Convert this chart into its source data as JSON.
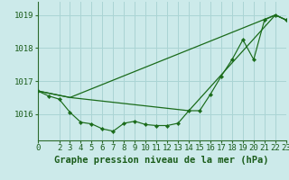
{
  "title": "Graphe pression niveau de la mer (hPa)",
  "background_color": "#cceaea",
  "grid_color": "#aad4d4",
  "line_color": "#1a6b1a",
  "xlim": [
    0,
    23
  ],
  "ylim": [
    1015.2,
    1019.4
  ],
  "yticks": [
    1016,
    1017,
    1018,
    1019
  ],
  "xticks": [
    0,
    2,
    3,
    4,
    5,
    6,
    7,
    8,
    9,
    10,
    11,
    12,
    13,
    14,
    15,
    16,
    17,
    18,
    19,
    20,
    21,
    22,
    23
  ],
  "series_main": {
    "x": [
      0,
      1,
      2,
      3,
      4,
      5,
      6,
      7,
      8,
      9,
      10,
      11,
      12,
      13,
      14,
      15,
      16,
      17,
      18,
      19,
      20,
      21,
      22,
      23
    ],
    "y": [
      1016.7,
      1016.55,
      1016.45,
      1016.05,
      1015.75,
      1015.7,
      1015.55,
      1015.48,
      1015.72,
      1015.78,
      1015.68,
      1015.65,
      1015.65,
      1015.72,
      1016.1,
      1016.1,
      1016.6,
      1017.15,
      1017.65,
      1018.25,
      1017.65,
      1018.85,
      1019.0,
      1018.85
    ]
  },
  "series_upper": {
    "x": [
      0,
      3,
      22,
      23
    ],
    "y": [
      1016.7,
      1016.5,
      1019.0,
      1018.85
    ]
  },
  "series_lower": {
    "x": [
      0,
      3,
      14,
      22,
      23
    ],
    "y": [
      1016.7,
      1016.5,
      1016.1,
      1019.0,
      1018.85
    ]
  },
  "tick_fontsize": 6.5,
  "label_fontsize": 7.5
}
